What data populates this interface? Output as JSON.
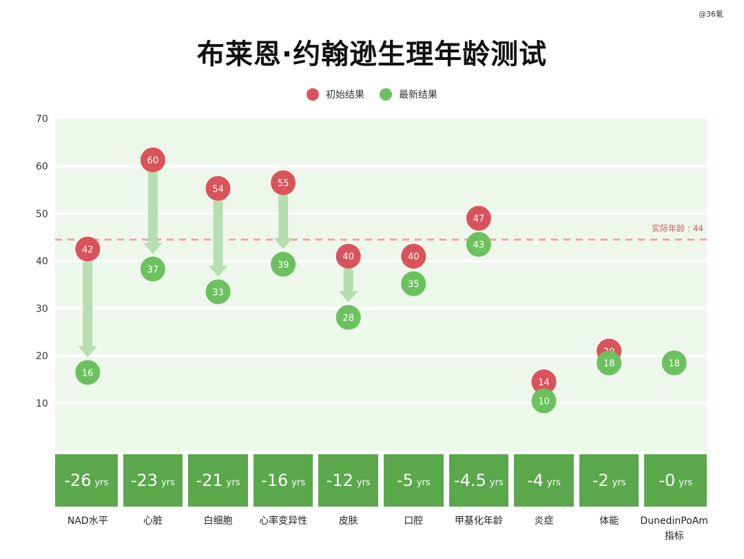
{
  "watermark": "@36氪",
  "chart_data": {
    "type": "dumbbell",
    "title": "布莱恩·约翰逊生理年龄测试",
    "legend": [
      {
        "name": "初始结果",
        "color": "#d9545a"
      },
      {
        "name": "最新结果",
        "color": "#6cc15f"
      }
    ],
    "legend_position": "top",
    "ylim": [
      0,
      70
    ],
    "yticks": [
      10,
      20,
      30,
      40,
      50,
      60,
      70
    ],
    "grid": true,
    "reference_line": {
      "value": 44.5,
      "label": "实际年龄 : 44"
    },
    "categories": [
      "NAD水平",
      "心脏",
      "白细胞",
      "心率变异性",
      "皮肤",
      "口腔",
      "甲基化年龄",
      "炎症",
      "体能",
      "DunedinPoAm\n指标"
    ],
    "series": [
      {
        "name": "初始结果",
        "values": [
          42,
          60,
          54,
          55,
          40,
          40,
          47,
          14,
          20,
          null
        ]
      },
      {
        "name": "最新结果",
        "values": [
          16,
          37,
          33,
          39,
          28,
          35,
          43,
          10,
          18,
          18
        ]
      }
    ],
    "point_levels": [
      {
        "initial": 42.5,
        "latest": 16.5
      },
      {
        "initial": 61.3,
        "latest": 38.3
      },
      {
        "initial": 55.3,
        "latest": 33.5
      },
      {
        "initial": 56.5,
        "latest": 39.3
      },
      {
        "initial": 41.0,
        "latest": 28.1
      },
      {
        "initial": 41.0,
        "latest": 35.2
      },
      {
        "initial": 49.0,
        "latest": 43.5
      },
      {
        "initial": 14.5,
        "latest": 10.5
      },
      {
        "initial": 21.0,
        "latest": 18.5
      },
      {
        "initial": null,
        "latest": 18.5
      }
    ],
    "differences": [
      "-26",
      "-23",
      "-21",
      "-16",
      "-12",
      "-5",
      "-4.5",
      "-4",
      "-2",
      "-0"
    ],
    "difference_unit": "yrs"
  }
}
